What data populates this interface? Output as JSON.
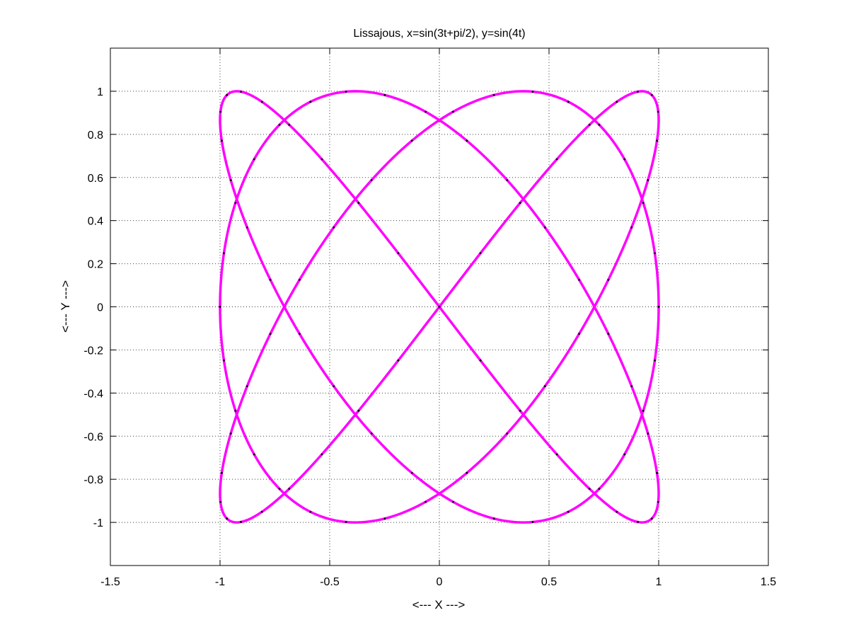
{
  "chart_data": {
    "type": "line",
    "title": "Lissajous, x=sin(3t+pi/2), y=sin(4t)",
    "xlabel": "<--- X --->",
    "ylabel": "<--- Y --->",
    "xlim": [
      -1.5,
      1.5
    ],
    "ylim": [
      -1.2,
      1.2
    ],
    "xticks": [
      -1.5,
      -1,
      -0.5,
      0,
      0.5,
      1,
      1.5
    ],
    "xtick_labels": [
      "-1.5",
      "-1",
      "-0.5",
      "0",
      "0.5",
      "1",
      "1.5"
    ],
    "yticks": [
      -1,
      -0.8,
      -0.6,
      -0.4,
      -0.2,
      0,
      0.2,
      0.4,
      0.6,
      0.8,
      1
    ],
    "ytick_labels": [
      "-1",
      "-0.8",
      "-0.6",
      "-0.4",
      "-0.2",
      "0",
      "0.2",
      "0.4",
      "0.6",
      "0.8",
      "1"
    ],
    "grid": true,
    "series": [
      {
        "equation_x": "sin(3t+pi/2)",
        "equation_y": "sin(4t)",
        "t_range": [
          0,
          6.283185307
        ],
        "line_color": "#ff00ff",
        "marker_color": "#000000",
        "marker_count": 100
      }
    ]
  },
  "colors": {
    "background": "#ffffff",
    "axes": "#000000",
    "curve": "#ff00ff",
    "markers": "#000000"
  }
}
